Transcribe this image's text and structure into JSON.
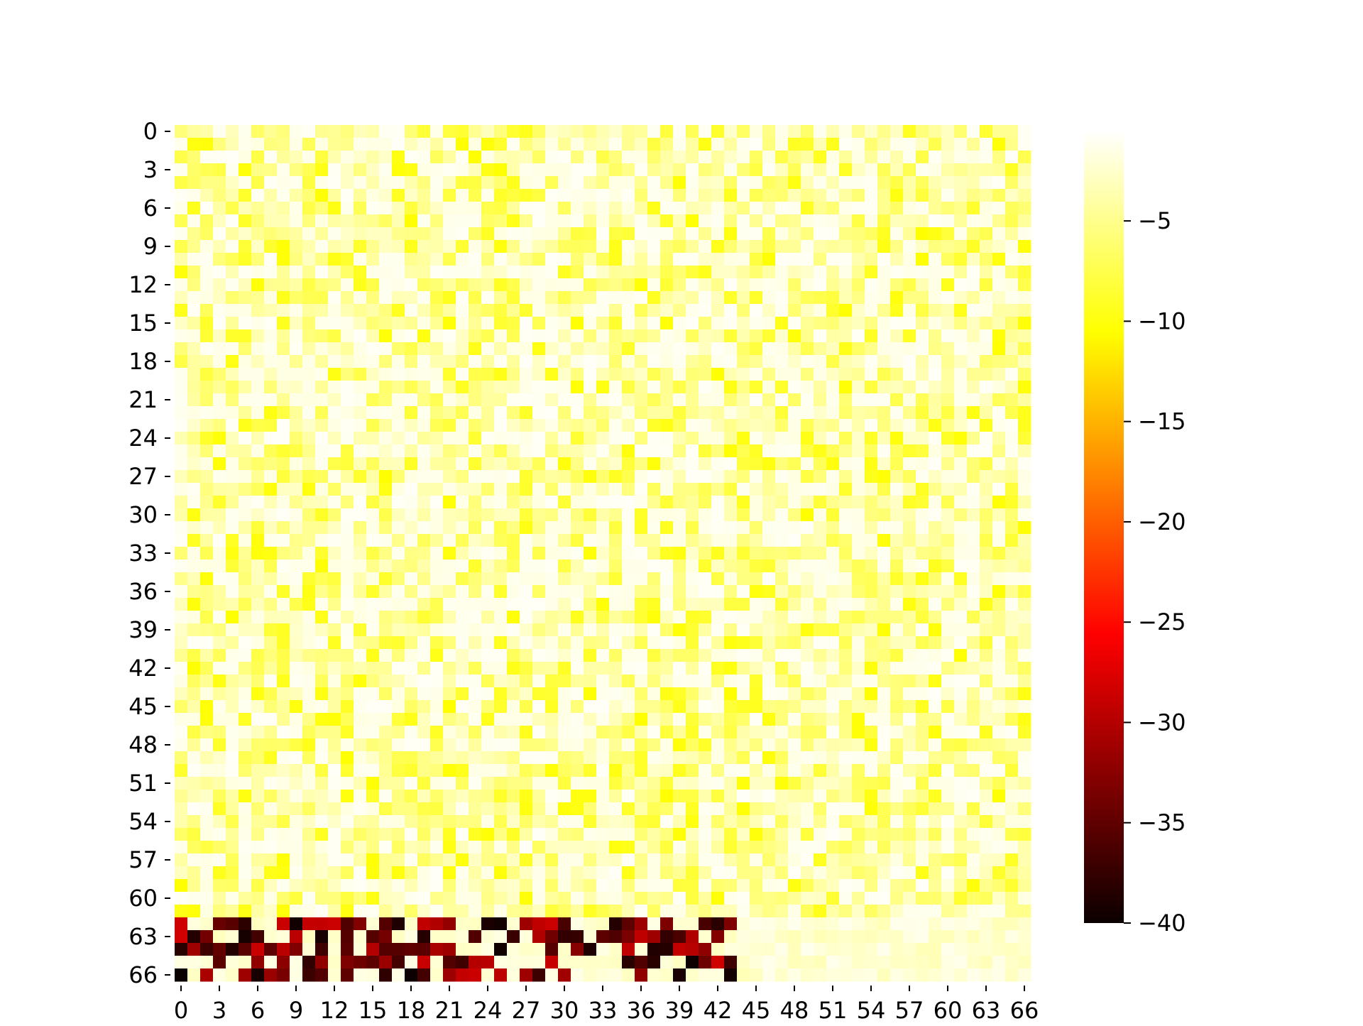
{
  "chart_data": {
    "type": "heatmap",
    "rows": 67,
    "cols": 67,
    "x_tick_labels": [
      "0",
      "3",
      "6",
      "9",
      "12",
      "15",
      "18",
      "21",
      "24",
      "27",
      "30",
      "33",
      "36",
      "39",
      "42",
      "45",
      "48",
      "51",
      "54",
      "57",
      "60",
      "63",
      "66"
    ],
    "y_tick_labels": [
      "0",
      "3",
      "6",
      "9",
      "12",
      "15",
      "18",
      "21",
      "24",
      "27",
      "30",
      "33",
      "36",
      "39",
      "42",
      "45",
      "48",
      "51",
      "54",
      "57",
      "60",
      "63",
      "66"
    ],
    "colorbar": {
      "colormap": "hot",
      "vmin": -40,
      "vmax": -0.5,
      "ticks": [
        "−5",
        "−10",
        "−15",
        "−20",
        "−25",
        "−30",
        "−35",
        "−40"
      ],
      "tick_values": [
        -5,
        -10,
        -15,
        -20,
        -25,
        -30,
        -35,
        -40
      ]
    },
    "value_summary": {
      "rows_0_to_61": "mostly between -1 and -9 (white to yellow)",
      "rows_62_to_66_cols_0_to_43": "strongly negative block, approx -28 to -40 (dark red to black)",
      "rows_62_to_66_cols_44_to_66": "near -1 to -3 (white)"
    }
  }
}
